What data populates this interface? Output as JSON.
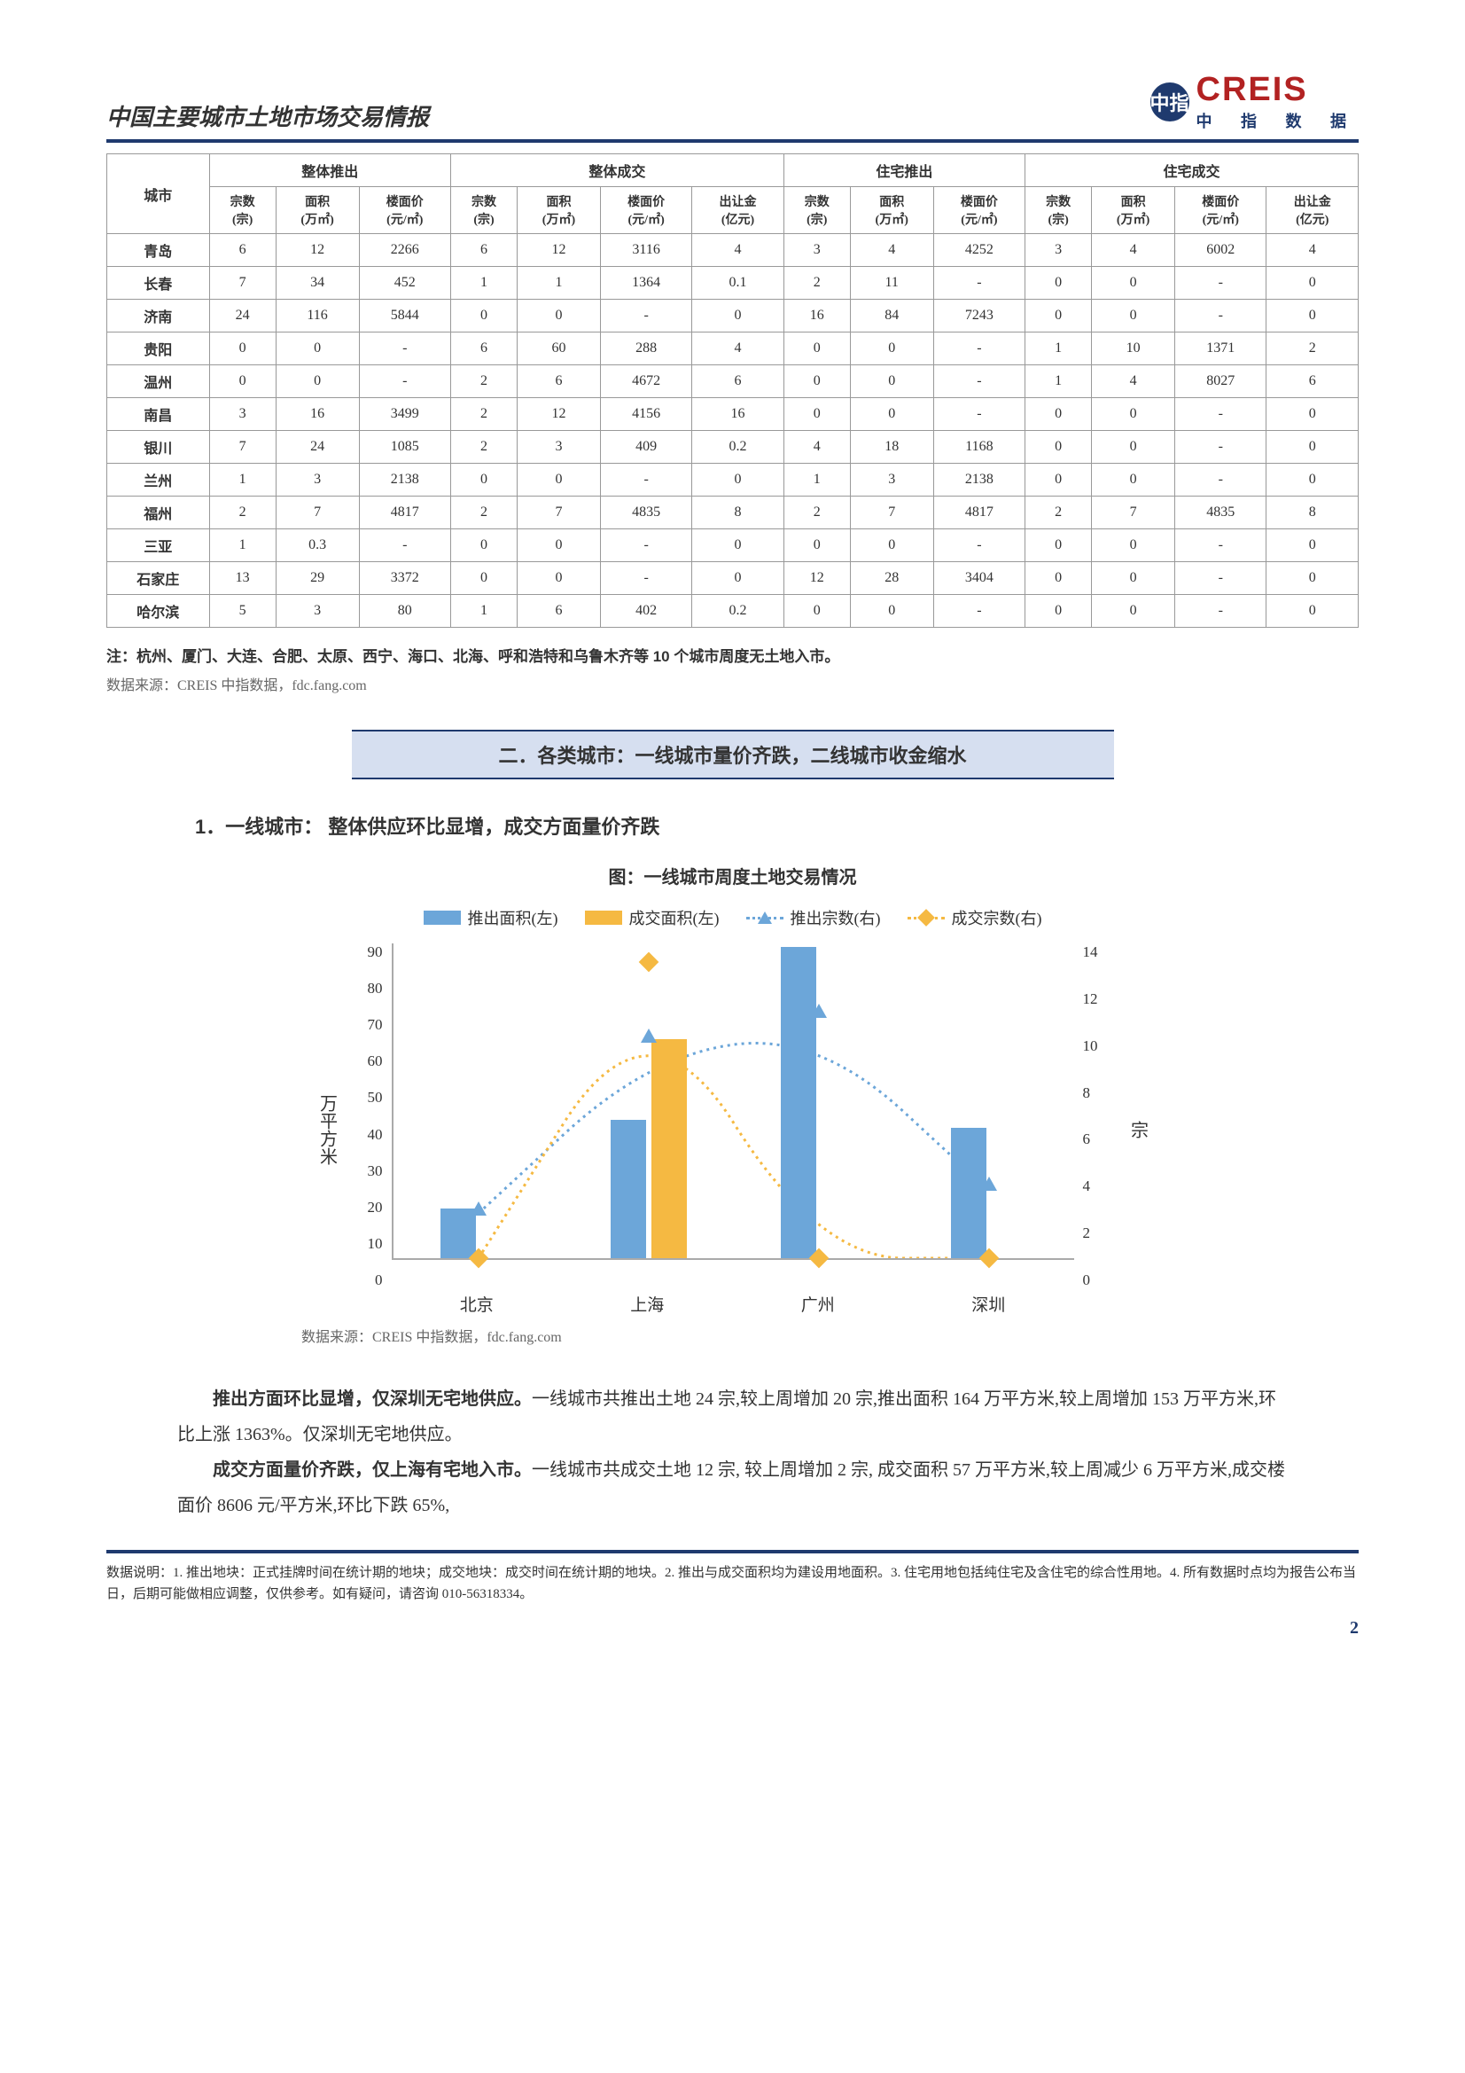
{
  "header": {
    "title": "中国主要城市土地市场交易情报"
  },
  "logo": {
    "icon": "中指",
    "big": "CREIS",
    "sub": "中 指 数 据"
  },
  "table": {
    "col_city": "城市",
    "groups": [
      "整体推出",
      "整体成交",
      "住宅推出",
      "住宅成交"
    ],
    "sub_headers": {
      "zongshu": "宗数\n(宗)",
      "mianji": "面积\n(万㎡)",
      "loumianjia": "楼面价\n(元/㎡)",
      "churangjin": "出让金\n(亿元)"
    },
    "rows": [
      {
        "city": "青岛",
        "g1": [
          "6",
          "12",
          "2266"
        ],
        "g2": [
          "6",
          "12",
          "3116",
          "4"
        ],
        "g3": [
          "3",
          "4",
          "4252"
        ],
        "g4": [
          "3",
          "4",
          "6002",
          "4"
        ]
      },
      {
        "city": "长春",
        "g1": [
          "7",
          "34",
          "452"
        ],
        "g2": [
          "1",
          "1",
          "1364",
          "0.1"
        ],
        "g3": [
          "2",
          "11",
          "-"
        ],
        "g4": [
          "0",
          "0",
          "-",
          "0"
        ]
      },
      {
        "city": "济南",
        "g1": [
          "24",
          "116",
          "5844"
        ],
        "g2": [
          "0",
          "0",
          "-",
          "0"
        ],
        "g3": [
          "16",
          "84",
          "7243"
        ],
        "g4": [
          "0",
          "0",
          "-",
          "0"
        ]
      },
      {
        "city": "贵阳",
        "g1": [
          "0",
          "0",
          "-"
        ],
        "g2": [
          "6",
          "60",
          "288",
          "4"
        ],
        "g3": [
          "0",
          "0",
          "-"
        ],
        "g4": [
          "1",
          "10",
          "1371",
          "2"
        ]
      },
      {
        "city": "温州",
        "g1": [
          "0",
          "0",
          "-"
        ],
        "g2": [
          "2",
          "6",
          "4672",
          "6"
        ],
        "g3": [
          "0",
          "0",
          "-"
        ],
        "g4": [
          "1",
          "4",
          "8027",
          "6"
        ]
      },
      {
        "city": "南昌",
        "g1": [
          "3",
          "16",
          "3499"
        ],
        "g2": [
          "2",
          "12",
          "4156",
          "16"
        ],
        "g3": [
          "0",
          "0",
          "-"
        ],
        "g4": [
          "0",
          "0",
          "-",
          "0"
        ]
      },
      {
        "city": "银川",
        "g1": [
          "7",
          "24",
          "1085"
        ],
        "g2": [
          "2",
          "3",
          "409",
          "0.2"
        ],
        "g3": [
          "4",
          "18",
          "1168"
        ],
        "g4": [
          "0",
          "0",
          "-",
          "0"
        ]
      },
      {
        "city": "兰州",
        "g1": [
          "1",
          "3",
          "2138"
        ],
        "g2": [
          "0",
          "0",
          "-",
          "0"
        ],
        "g3": [
          "1",
          "3",
          "2138"
        ],
        "g4": [
          "0",
          "0",
          "-",
          "0"
        ]
      },
      {
        "city": "福州",
        "g1": [
          "2",
          "7",
          "4817"
        ],
        "g2": [
          "2",
          "7",
          "4835",
          "8"
        ],
        "g3": [
          "2",
          "7",
          "4817"
        ],
        "g4": [
          "2",
          "7",
          "4835",
          "8"
        ]
      },
      {
        "city": "三亚",
        "g1": [
          "1",
          "0.3",
          "-"
        ],
        "g2": [
          "0",
          "0",
          "-",
          "0"
        ],
        "g3": [
          "0",
          "0",
          "-"
        ],
        "g4": [
          "0",
          "0",
          "-",
          "0"
        ]
      },
      {
        "city": "石家庄",
        "g1": [
          "13",
          "29",
          "3372"
        ],
        "g2": [
          "0",
          "0",
          "-",
          "0"
        ],
        "g3": [
          "12",
          "28",
          "3404"
        ],
        "g4": [
          "0",
          "0",
          "-",
          "0"
        ]
      },
      {
        "city": "哈尔滨",
        "g1": [
          "5",
          "3",
          "80"
        ],
        "g2": [
          "1",
          "6",
          "402",
          "0.2"
        ],
        "g3": [
          "0",
          "0",
          "-"
        ],
        "g4": [
          "0",
          "0",
          "-",
          "0"
        ]
      }
    ]
  },
  "note": "注：杭州、厦门、大连、合肥、太原、西宁、海口、北海、呼和浩特和乌鲁木齐等 10 个城市周度无土地入市。",
  "source": "数据来源：CREIS 中指数据，fdc.fang.com",
  "section_banner": "二．各类城市：一线城市量价齐跌，二线城市收金缩水",
  "subsection": "1．一线城市： 整体供应环比显增，成交方面量价齐跌",
  "chart": {
    "title": "图：一线城市周度土地交易情况",
    "legend": {
      "bar1": "推出面积(左)",
      "bar2": "成交面积(左)",
      "line1": "推出宗数(右)",
      "line2": "成交宗数(右)"
    },
    "colors": {
      "bar1": "#6ca6d9",
      "bar2": "#f5b942",
      "line1": "#6ca6d9",
      "line2": "#f5b942"
    },
    "y_left_label": "万平方米",
    "y_right_label": "宗",
    "y_left": {
      "min": 0,
      "max": 90,
      "step": 10,
      "ticks": [
        "90",
        "80",
        "70",
        "60",
        "50",
        "40",
        "30",
        "20",
        "10",
        "0"
      ]
    },
    "y_right": {
      "min": 0,
      "max": 14,
      "step": 2,
      "ticks": [
        "14",
        "12",
        "10",
        "8",
        "6",
        "4",
        "2",
        "0"
      ]
    },
    "categories": [
      "北京",
      "上海",
      "广州",
      "深圳"
    ],
    "bar1_values": [
      13,
      36,
      81,
      34
    ],
    "bar2_values": [
      0,
      57,
      0,
      0
    ],
    "line1_values": [
      2,
      9,
      10,
      3
    ],
    "line2_values": [
      0,
      12,
      0,
      0
    ],
    "source": "数据来源：CREIS 中指数据，fdc.fang.com"
  },
  "body": {
    "p1_bold": "推出方面环比显增，仅深圳无宅地供应。",
    "p1_rest": "一线城市共推出土地 24 宗,较上周增加 20 宗,推出面积 164 万平方米,较上周增加 153 万平方米,环比上涨 1363%。仅深圳无宅地供应。",
    "p2_bold": "成交方面量价齐跌，仅上海有宅地入市。",
    "p2_rest": "一线城市共成交土地 12 宗, 较上周增加 2 宗, 成交面积 57 万平方米,较上周减少 6 万平方米,成交楼面价 8606 元/平方米,环比下跌 65%,"
  },
  "footer": {
    "text": "数据说明：1. 推出地块：正式挂牌时间在统计期的地块；成交地块：成交时间在统计期的地块。2. 推出与成交面积均为建设用地面积。3. 住宅用地包括纯住宅及含住宅的综合性用地。4. 所有数据时点均为报告公布当日，后期可能做相应调整，仅供参考。如有疑问，请咨询 010-56318334。",
    "page": "2"
  }
}
